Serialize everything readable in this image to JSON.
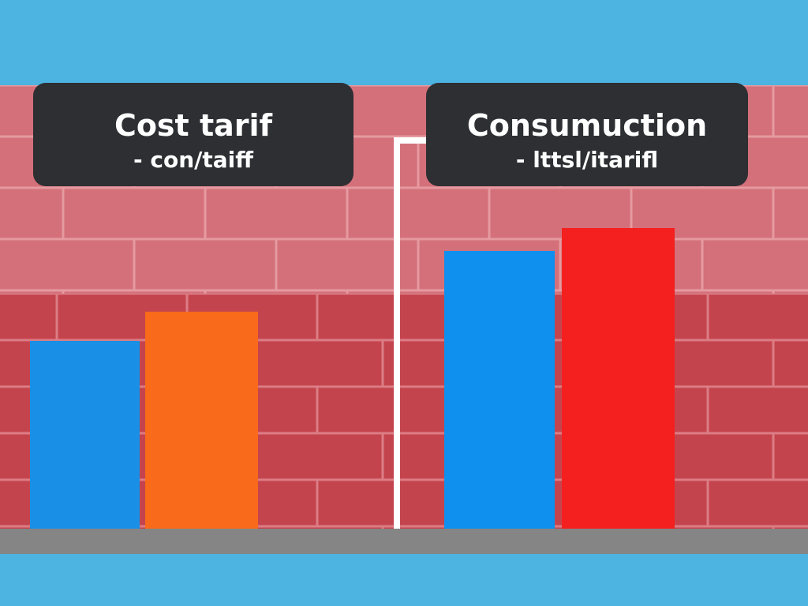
{
  "chart_data": [
    {
      "type": "bar",
      "title": "Cost tarif",
      "subtitle": "- con/taiff",
      "values": [
        238,
        275
      ],
      "colors": [
        "#1a8fe6",
        "#f96a1a"
      ]
    },
    {
      "type": "bar",
      "title": "Consumuction",
      "subtitle": "- lttsl/itarifl",
      "values": [
        352,
        381
      ],
      "colors": [
        "#0f8fee",
        "#f42020"
      ]
    }
  ]
}
